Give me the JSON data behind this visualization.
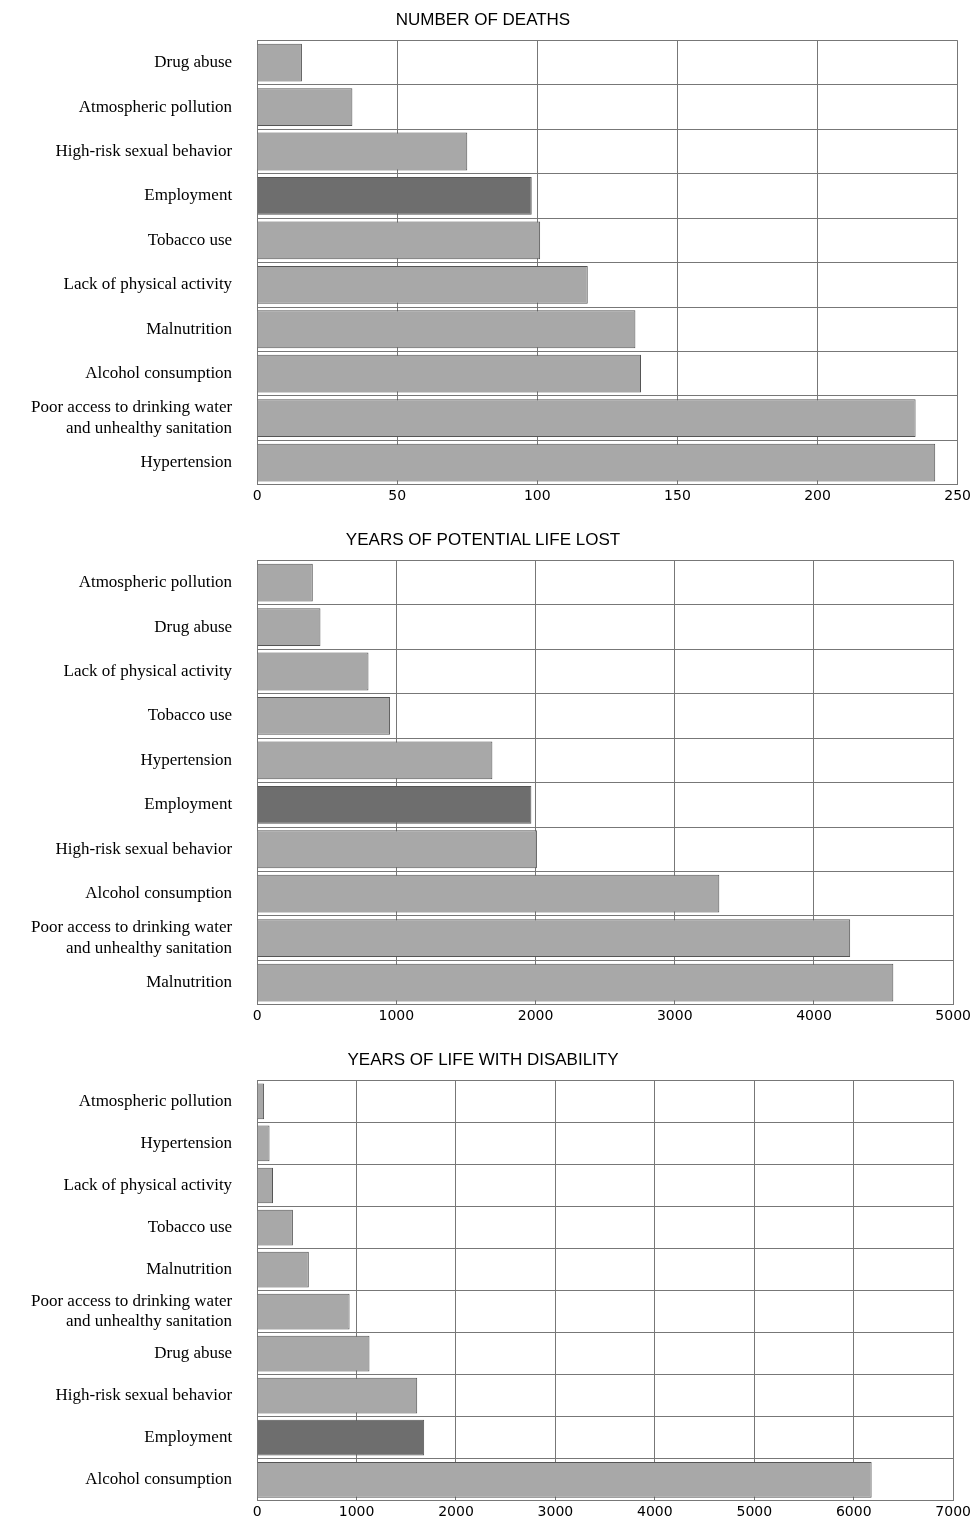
{
  "chart_data": [
    {
      "type": "bar",
      "orientation": "horizontal",
      "title": "NUMBER OF DEATHS",
      "categories": [
        "Drug abuse",
        "Atmospheric pollution",
        "High-risk sexual behavior",
        "Employment",
        "Tobacco use",
        "Lack of physical activity",
        "Malnutrition",
        "Alcohol consumption",
        "Poor access to drinking water and unhealthy sanitation",
        "Hypertension"
      ],
      "values": [
        16,
        34,
        75,
        98,
        101,
        118,
        135,
        137,
        235,
        242
      ],
      "colors": [
        "#a8a8a8",
        "#a8a8a8",
        "#a8a8a8",
        "#6e6e6e",
        "#a8a8a8",
        "#a8a8a8",
        "#a8a8a8",
        "#a8a8a8",
        "#a8a8a8",
        "#a8a8a8"
      ],
      "xlim": [
        0,
        250
      ],
      "xticks": [
        0,
        50,
        100,
        150,
        200,
        250
      ],
      "grid": true,
      "legend": false
    },
    {
      "type": "bar",
      "orientation": "horizontal",
      "title": "YEARS OF POTENTIAL LIFE LOST",
      "categories": [
        "Atmospheric pollution",
        "Drug abuse",
        "Lack of physical activity",
        "Tobacco use",
        "Hypertension",
        "Employment",
        "High-risk sexual behavior",
        "Alcohol consumption",
        "Poor access to drinking water and unhealthy sanitation",
        "Malnutrition"
      ],
      "values": [
        400,
        455,
        800,
        955,
        1690,
        1970,
        2010,
        3320,
        4260,
        4570
      ],
      "colors": [
        "#a8a8a8",
        "#a8a8a8",
        "#a8a8a8",
        "#a8a8a8",
        "#a8a8a8",
        "#6e6e6e",
        "#a8a8a8",
        "#a8a8a8",
        "#a8a8a8",
        "#a8a8a8"
      ],
      "xlim": [
        0,
        5000
      ],
      "xticks": [
        0,
        1000,
        2000,
        3000,
        4000,
        5000
      ],
      "grid": true,
      "legend": false
    },
    {
      "type": "bar",
      "orientation": "horizontal",
      "title": "YEARS OF LIFE WITH DISABILITY",
      "categories": [
        "Atmospheric pollution",
        "Hypertension",
        "Lack of physical activity",
        "Tobacco use",
        "Malnutrition",
        "Poor access to drinking water and unhealthy sanitation",
        "Drug abuse",
        "High-risk sexual behavior",
        "Employment",
        "Alcohol consumption"
      ],
      "values": [
        70,
        125,
        160,
        360,
        520,
        930,
        1130,
        1610,
        1680,
        6180
      ],
      "colors": [
        "#a8a8a8",
        "#a8a8a8",
        "#a8a8a8",
        "#a8a8a8",
        "#a8a8a8",
        "#a8a8a8",
        "#a8a8a8",
        "#a8a8a8",
        "#6e6e6e",
        "#a8a8a8"
      ],
      "xlim": [
        0,
        7000
      ],
      "xticks": [
        0,
        1000,
        2000,
        3000,
        4000,
        5000,
        6000,
        7000
      ],
      "grid": true,
      "legend": false
    }
  ]
}
